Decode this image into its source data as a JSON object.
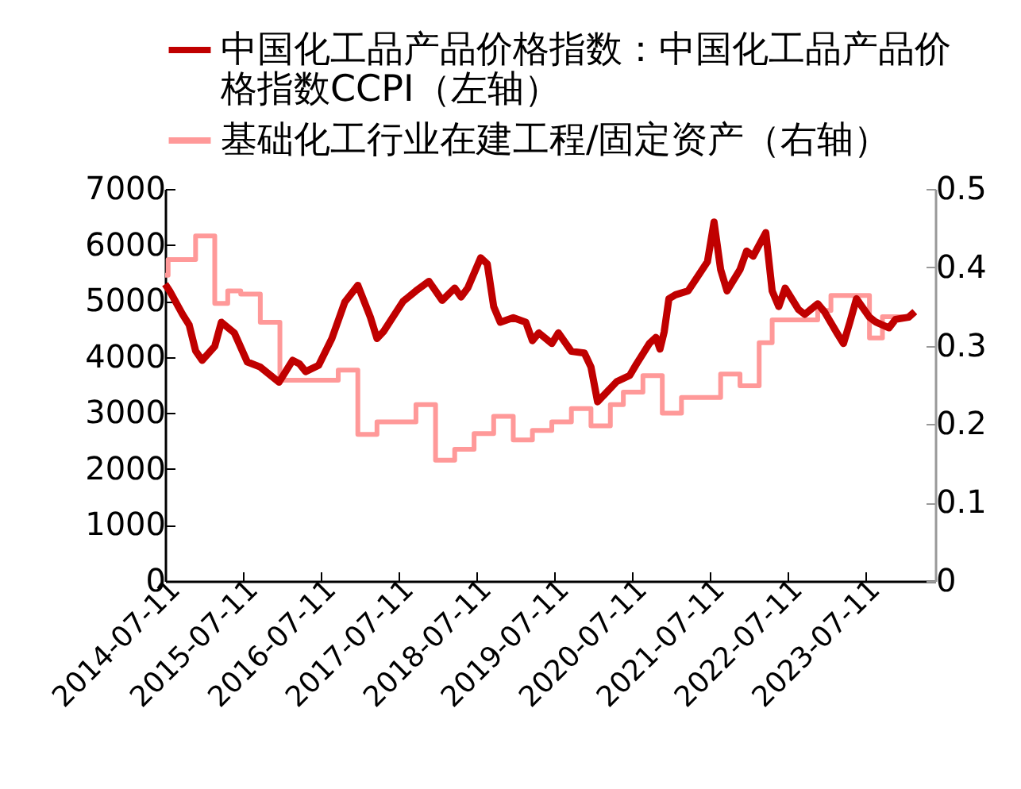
{
  "chart_data": {
    "type": "line",
    "legend": "top",
    "xlim": [
      "2014-07-11",
      "2024-06-05"
    ],
    "xticks": [
      "2014-07-11",
      "2015-07-11",
      "2016-07-11",
      "2017-07-11",
      "2018-07-11",
      "2019-07-11",
      "2020-07-11",
      "2021-07-11",
      "2022-07-11",
      "2023-07-11"
    ],
    "ylim": [
      0,
      7000
    ],
    "yticks": [
      0,
      1000,
      2000,
      3000,
      4000,
      5000,
      6000,
      7000
    ],
    "y2lim": [
      0,
      0.5
    ],
    "y2ticks": [
      0,
      0.1,
      0.2,
      0.3,
      0.4,
      0.5
    ],
    "series": [
      {
        "name": "中国化工品产品价格指数：中国化工品产品价格指数CCPI（左轴）",
        "color": "#c00000",
        "x": [
          "2014-07-11",
          "2014-08",
          "2014-10",
          "2014-11",
          "2014-12",
          "2015-01",
          "2015-03",
          "2015-04",
          "2015-06",
          "2015-08",
          "2015-10",
          "2015-12-28",
          "2016-03",
          "2016-04",
          "2016-05",
          "2016-07",
          "2016-09",
          "2016-11",
          "2017-01",
          "2017-03",
          "2017-04",
          "2017-05",
          "2017-08",
          "2017-10",
          "2017-12",
          "2018-02",
          "2018-04",
          "2018-05",
          "2018-06",
          "2018-08",
          "2018-09",
          "2018-10",
          "2018-11",
          "2019-01",
          "2019-03",
          "2019-04",
          "2019-05",
          "2019-07",
          "2019-08",
          "2019-10",
          "2019-12",
          "2020-01",
          "2020-02",
          "2020-04",
          "2020-05",
          "2020-07",
          "2020-08",
          "2020-10",
          "2020-11-01",
          "2020-11-20",
          "2020-12-10",
          "2021-01",
          "2021-02",
          "2021-04",
          "2021-05",
          "2021-07",
          "2021-08",
          "2021-09",
          "2021-10",
          "2021-12",
          "2022-01",
          "2022-02",
          "2022-04",
          "2022-05",
          "2022-06",
          "2022-07",
          "2022-09",
          "2022-10",
          "2022-12",
          "2023-01",
          "2023-03",
          "2023-04",
          "2023-05",
          "2023-06",
          "2023-08",
          "2023-09",
          "2023-11",
          "2023-12",
          "2024-02",
          "2024-03"
        ],
        "values": [
          5300,
          5180,
          4760,
          4570,
          4110,
          3940,
          4190,
          4620,
          4430,
          3910,
          3820,
          3550,
          3940,
          3880,
          3740,
          3850,
          4330,
          4980,
          5280,
          4710,
          4330,
          4450,
          4990,
          5180,
          5350,
          5010,
          5230,
          5070,
          5230,
          5770,
          5660,
          4900,
          4620,
          4700,
          4620,
          4290,
          4430,
          4240,
          4430,
          4100,
          4070,
          3820,
          3200,
          3440,
          3560,
          3670,
          3870,
          4240,
          4350,
          4140,
          4450,
          5040,
          5110,
          5180,
          5350,
          5700,
          6410,
          5560,
          5180,
          5560,
          5890,
          5800,
          6220,
          5180,
          4900,
          5230,
          4850,
          4760,
          4950,
          4810,
          4430,
          4240,
          4620,
          5040,
          4710,
          4620,
          4520,
          4670,
          4710,
          4810
        ]
      },
      {
        "name": "基础化工行业在建工程/固定资产（右轴）",
        "type": "step",
        "axis": "y2",
        "color": "#ff9999",
        "x": [
          "2014-07-11",
          "2014-07-25",
          "2014-12",
          "2015-03",
          "2015-05",
          "2015-07",
          "2015-10",
          "2016-01",
          "2016-10",
          "2017-01",
          "2017-04",
          "2017-10",
          "2018-01",
          "2018-04",
          "2018-07",
          "2018-10",
          "2019-01",
          "2019-04",
          "2019-07",
          "2019-10",
          "2020-01",
          "2020-04",
          "2020-06",
          "2020-09",
          "2020-12",
          "2021-03",
          "2021-09",
          "2021-12",
          "2022-03",
          "2022-05",
          "2022-12",
          "2023-02",
          "2023-08",
          "2023-10",
          "2024-02"
        ],
        "values": [
          0.39,
          0.41,
          0.44,
          0.354,
          0.37,
          0.366,
          0.33,
          0.256,
          0.269,
          0.187,
          0.203,
          0.225,
          0.154,
          0.168,
          0.188,
          0.21,
          0.18,
          0.192,
          0.203,
          0.22,
          0.198,
          0.225,
          0.241,
          0.262,
          0.214,
          0.234,
          0.264,
          0.249,
          0.304,
          0.333,
          0.345,
          0.364,
          0.31,
          0.337,
          0.337
        ]
      }
    ]
  }
}
